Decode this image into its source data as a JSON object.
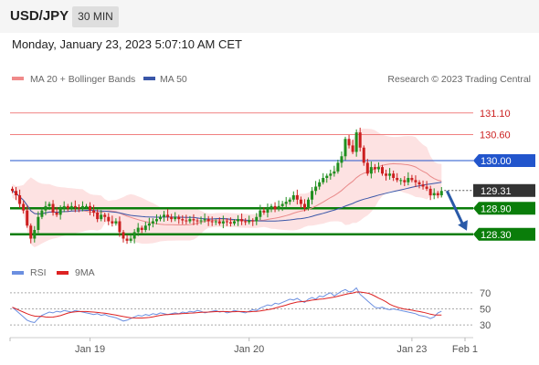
{
  "header": {
    "pair": "USD/JPY",
    "timeframe": "30 MIN",
    "datetime": "Monday, January 23, 2023 5:07:10 AM CET"
  },
  "watermark": "Research © 2023 Trading Central",
  "colors": {
    "candle_up": "#1f8f1f",
    "candle_down": "#cc1f1f",
    "ma20": "#e98a8a",
    "bollinger_fill": "#fde2e2",
    "ma50": "#3a56a8",
    "resistance": "#f08080",
    "pivot": "#2255cc",
    "support": "#0a7d0a",
    "current_price_tag": "#333333",
    "arrow": "#2a5aa8",
    "rsi": "#6b8fe0",
    "rsi_ma": "#dd2222"
  },
  "chart_data": [
    {
      "type": "candlestick",
      "legend": [
        {
          "name": "MA 20 + Bollinger Bands",
          "color": "#f08a8a"
        },
        {
          "name": "MA 50",
          "color": "#3a56a8"
        }
      ],
      "ylim": [
        127.6,
        131.6
      ],
      "current_price": "129.31",
      "levels": [
        {
          "value": 131.1,
          "label": "131.10",
          "kind": "resistance"
        },
        {
          "value": 130.6,
          "label": "130.60",
          "kind": "resistance"
        },
        {
          "value": 130.0,
          "label": "130.00",
          "kind": "pivot"
        },
        {
          "value": 128.9,
          "label": "128.90",
          "kind": "support"
        },
        {
          "value": 128.3,
          "label": "128.30",
          "kind": "support"
        }
      ],
      "x_ticks": [
        "Jan 19",
        "Jan 20",
        "Jan 23",
        "Feb 1"
      ],
      "x_tick_index": [
        21,
        64,
        108,
        124
      ],
      "projection": {
        "from": 129.3,
        "to": 128.32
      },
      "closes": [
        129.3,
        129.2,
        129.0,
        128.85,
        128.5,
        128.2,
        128.4,
        128.7,
        128.85,
        128.95,
        129.0,
        128.8,
        128.75,
        128.9,
        128.95,
        128.9,
        128.95,
        128.92,
        128.9,
        128.95,
        128.95,
        128.85,
        128.8,
        128.65,
        128.75,
        128.7,
        128.6,
        128.55,
        128.6,
        128.35,
        128.2,
        128.15,
        128.2,
        128.35,
        128.45,
        128.4,
        128.5,
        128.55,
        128.6,
        128.65,
        128.7,
        128.75,
        128.7,
        128.65,
        128.7,
        128.65,
        128.62,
        128.6,
        128.65,
        128.62,
        128.6,
        128.62,
        128.65,
        128.6,
        128.58,
        128.6,
        128.55,
        128.6,
        128.58,
        128.55,
        128.6,
        128.65,
        128.6,
        128.58,
        128.62,
        128.6,
        128.7,
        128.85,
        128.8,
        128.9,
        128.95,
        128.88,
        128.95,
        129.0,
        129.05,
        129.1,
        129.2,
        129.1,
        129.0,
        128.9,
        129.1,
        129.3,
        129.4,
        129.5,
        129.6,
        129.65,
        129.7,
        129.75,
        129.95,
        130.1,
        130.5,
        130.35,
        130.2,
        130.65,
        130.3,
        129.95,
        129.7,
        129.85,
        129.8,
        129.85,
        129.7,
        129.65,
        129.7,
        129.6,
        129.55,
        129.55,
        129.5,
        129.6,
        129.55,
        129.5,
        129.45,
        129.4,
        129.35,
        129.2,
        129.25,
        129.2,
        129.3
      ]
    },
    {
      "type": "line",
      "legend": [
        {
          "name": "RSI",
          "color": "#6b8fe0"
        },
        {
          "name": "9MA",
          "color": "#dd2222"
        }
      ],
      "ylim": [
        20,
        80
      ],
      "y_ticks": [
        70,
        50,
        30
      ],
      "rsi": [
        52,
        48,
        44,
        40,
        36,
        34,
        33,
        38,
        42,
        44,
        46,
        45,
        47,
        46,
        48,
        47,
        46,
        48,
        47,
        46,
        45,
        44,
        43,
        44,
        42,
        43,
        41,
        40,
        39,
        37,
        35,
        36,
        38,
        40,
        42,
        41,
        43,
        42,
        44,
        43,
        45,
        44,
        43,
        44,
        45,
        44,
        46,
        45,
        47,
        46,
        48,
        47,
        45,
        46,
        47,
        48,
        46,
        47,
        45,
        46,
        48,
        47,
        46,
        45,
        47,
        49,
        48,
        51,
        53,
        55,
        54,
        57,
        56,
        58,
        60,
        62,
        61,
        63,
        60,
        58,
        62,
        64,
        62,
        66,
        65,
        68,
        70,
        66,
        69,
        72,
        74,
        71,
        72,
        76,
        68,
        64,
        60,
        56,
        52,
        51,
        52,
        50,
        49,
        50,
        49,
        48,
        47,
        46,
        45,
        44,
        42,
        41,
        40,
        38,
        40,
        45,
        47
      ]
    }
  ]
}
